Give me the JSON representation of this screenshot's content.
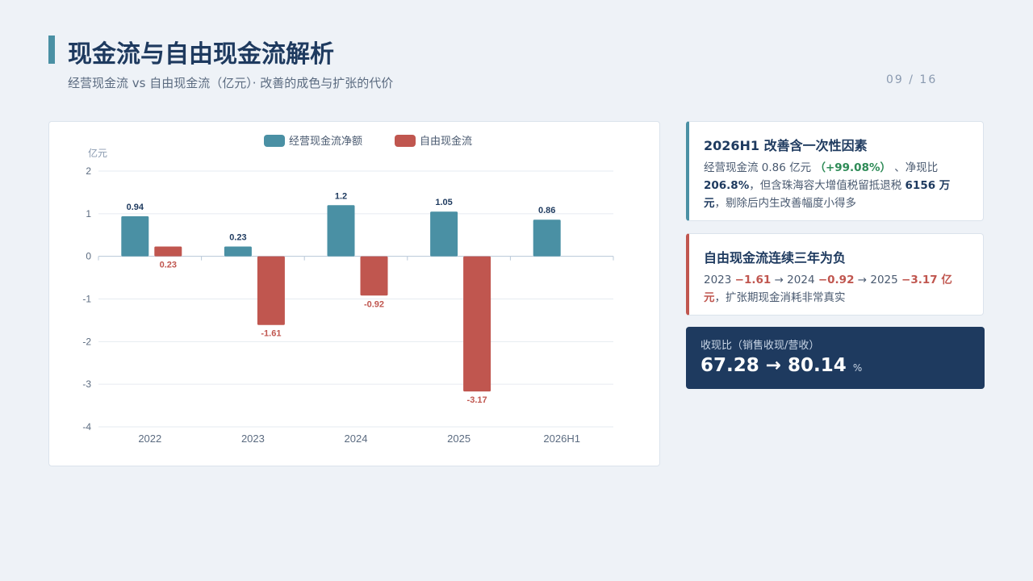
{
  "header": {
    "title": "现金流与自由现金流解析",
    "subtitle": "经营现金流 vs 自由现金流（亿元）· 改善的成色与扩张的代价",
    "page": "09 / 16"
  },
  "chart_data": {
    "type": "bar",
    "categories": [
      "2022",
      "2023",
      "2024",
      "2025",
      "2026H1"
    ],
    "series": [
      {
        "name": "经营现金流净额",
        "color": "#4a90a4",
        "values": [
          0.94,
          0.23,
          1.2,
          1.05,
          0.86
        ]
      },
      {
        "name": "自由现金流",
        "color": "#c0564f",
        "values": [
          0.23,
          -1.61,
          -0.92,
          -3.17,
          null
        ]
      }
    ],
    "ylabel": "亿元",
    "ylim": [
      -4,
      2
    ],
    "yticks": [
      2,
      1,
      0,
      -1,
      -2,
      -3,
      -4
    ],
    "legend": "top-center",
    "grid": true
  },
  "cards": {
    "c1": {
      "title": "2026H1 改善含一次性因素",
      "t1": "经营现金流 0.86 亿元",
      "t2": "（+99.08%）",
      "t3": "、净现比",
      "t4": "206.8%",
      "t5": "，但含珠海容大增值税留抵退税",
      "t6": "6156 万元",
      "t7": "，剔除后内生改善幅度小得多"
    },
    "c2": {
      "title": "自由现金流连续三年为负",
      "t1": "2023",
      "t2": "−1.61",
      "t3": "→ 2024",
      "t4": "−0.92",
      "t5": "→ 2025",
      "t6": "−3.17 亿元",
      "t7": "，扩张期现金消耗非常真实"
    },
    "c3": {
      "label": "收现比（销售收现/营收）",
      "value": "67.28 → 80.14",
      "unit": "%"
    }
  }
}
